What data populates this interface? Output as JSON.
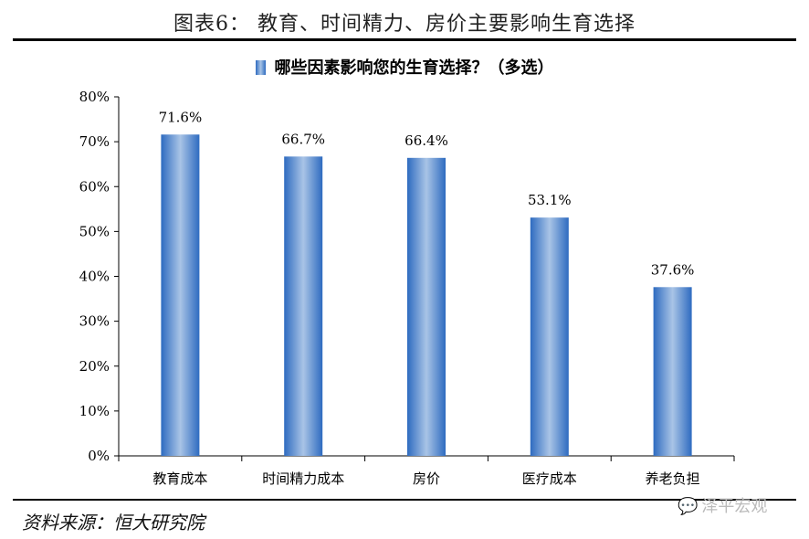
{
  "figure_title": "图表6：  教育、时间精力、房价主要影响生育选择",
  "source": "资料来源：恒大研究院",
  "watermark": "泽平宏观",
  "colors": {
    "bar_edge": "#2e6bc0",
    "bar_center": "#a9c4e6",
    "axis": "#000000"
  },
  "chart_data": {
    "type": "bar",
    "title": "",
    "series": [
      {
        "name": "哪些因素影响您的生育选择？（多选）",
        "values": [
          71.6,
          66.7,
          66.4,
          53.1,
          37.6
        ]
      }
    ],
    "categories": [
      "教育成本",
      "时间精力成本",
      "房价",
      "医疗成本",
      "养老负担"
    ],
    "data_labels": [
      "71.6%",
      "66.7%",
      "66.4%",
      "53.1%",
      "37.6%"
    ],
    "yticks": [
      "0%",
      "10%",
      "20%",
      "30%",
      "40%",
      "50%",
      "60%",
      "70%",
      "80%"
    ],
    "ylim": [
      0,
      80
    ],
    "xlabel": "",
    "ylabel": "",
    "grid": false,
    "legend_position": "top-center"
  }
}
